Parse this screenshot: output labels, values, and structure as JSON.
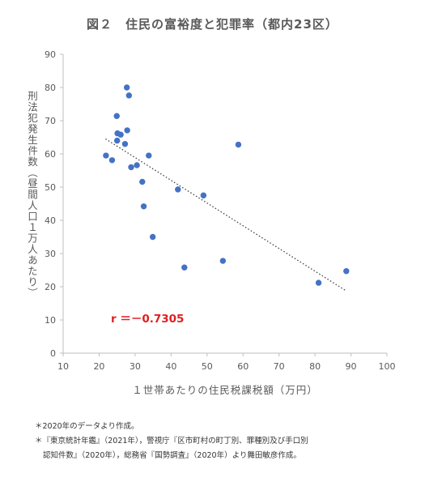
{
  "title": "図２　住民の富裕度と犯罪率（都内23区）",
  "chart_data": {
    "type": "scatter",
    "title": "図２　住民の富裕度と犯罪率（都内23区）",
    "xlabel": "１世帯あたりの住民税課税額（万円）",
    "ylabel": "刑法犯発生件数（昼間人口１万人あたり）",
    "xlim": [
      10,
      100
    ],
    "ylim": [
      0,
      90
    ],
    "xticks": [
      "10",
      "20",
      "30",
      "40",
      "50",
      "60",
      "70",
      "80",
      "90",
      "100"
    ],
    "yticks": [
      "0",
      "10",
      "20",
      "30",
      "40",
      "50",
      "60",
      "70",
      "80",
      "90"
    ],
    "grid": false,
    "trendline": "linear (dotted)",
    "annotation": "r ＝－0.7305",
    "point_color": "#4472c4",
    "points": [
      {
        "x": 21.9,
        "y": 59.5
      },
      {
        "x": 23.6,
        "y": 58.1
      },
      {
        "x": 24.9,
        "y": 71.4
      },
      {
        "x": 25.0,
        "y": 64.0
      },
      {
        "x": 25.1,
        "y": 66.2
      },
      {
        "x": 26.0,
        "y": 65.8
      },
      {
        "x": 27.2,
        "y": 63.0
      },
      {
        "x": 27.7,
        "y": 80.0
      },
      {
        "x": 27.8,
        "y": 67.1
      },
      {
        "x": 28.3,
        "y": 77.6
      },
      {
        "x": 28.9,
        "y": 56.0
      },
      {
        "x": 30.5,
        "y": 56.6
      },
      {
        "x": 32.0,
        "y": 51.6
      },
      {
        "x": 32.4,
        "y": 44.2
      },
      {
        "x": 33.8,
        "y": 59.5
      },
      {
        "x": 34.9,
        "y": 35.0
      },
      {
        "x": 41.9,
        "y": 49.3
      },
      {
        "x": 43.7,
        "y": 25.8
      },
      {
        "x": 49.0,
        "y": 47.5
      },
      {
        "x": 54.4,
        "y": 27.8
      },
      {
        "x": 58.7,
        "y": 62.8
      },
      {
        "x": 81.0,
        "y": 21.2
      },
      {
        "x": 88.7,
        "y": 24.7
      }
    ],
    "trend": {
      "x": [
        21.8,
        88.6
      ],
      "y": [
        64.5,
        18.8
      ]
    }
  },
  "notes": [
    "＊2020年のデータより作成。",
    "＊『東京統計年鑑』（2021年），警視庁『区市町村の町丁別、罪種別及び手口別",
    "認知件数』（2020年），総務省『国勢調査』（2020年）より舞田敏彦作成。"
  ]
}
